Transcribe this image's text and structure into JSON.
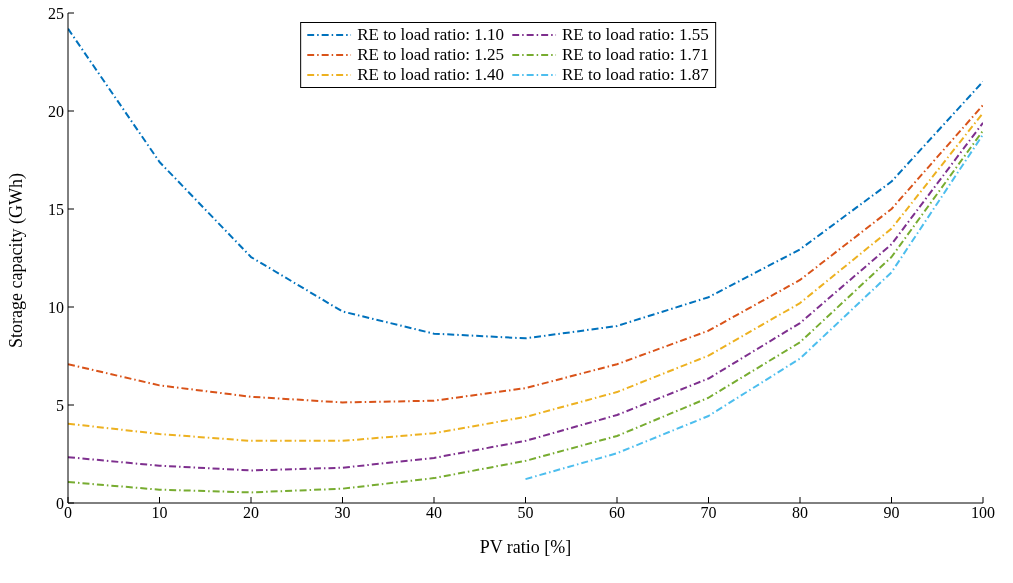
{
  "chart_data": {
    "type": "line",
    "xlabel": "PV ratio [%]",
    "ylabel": "Storage capacity (GWh)",
    "x": [
      0,
      10,
      20,
      30,
      40,
      50,
      60,
      70,
      80,
      90,
      100
    ],
    "series": [
      {
        "name": "RE to load ratio: 1.10",
        "color": "#0072bd",
        "values": [
          24.2,
          17.4,
          12.55,
          9.77,
          8.64,
          8.4,
          9.03,
          10.5,
          12.94,
          16.4,
          21.5
        ]
      },
      {
        "name": "RE to load ratio: 1.25",
        "color": "#d95319",
        "values": [
          7.08,
          6.0,
          5.42,
          5.13,
          5.22,
          5.86,
          7.08,
          8.79,
          11.38,
          15.0,
          20.3
        ]
      },
      {
        "name": "RE to load ratio: 1.40",
        "color": "#edb120",
        "values": [
          4.05,
          3.52,
          3.17,
          3.17,
          3.56,
          4.39,
          5.66,
          7.52,
          10.2,
          14.0,
          19.9
        ]
      },
      {
        "name": "RE to load ratio: 1.55",
        "color": "#7e2f8e",
        "values": [
          2.34,
          1.9,
          1.66,
          1.8,
          2.3,
          3.17,
          4.49,
          6.35,
          9.18,
          13.2,
          19.4
        ]
      },
      {
        "name": "RE to load ratio: 1.71",
        "color": "#77ac30",
        "values": [
          1.07,
          0.68,
          0.54,
          0.73,
          1.27,
          2.15,
          3.42,
          5.37,
          8.2,
          12.55,
          19.0
        ]
      },
      {
        "name": "RE to load ratio: 1.87",
        "color": "#4dbeee",
        "values": [
          null,
          null,
          null,
          null,
          null,
          1.22,
          2.54,
          4.44,
          7.37,
          11.77,
          18.8
        ]
      }
    ],
    "xlim": [
      0,
      100
    ],
    "xticks": [
      0,
      10,
      20,
      30,
      40,
      50,
      60,
      70,
      80,
      90,
      100
    ],
    "ylim": [
      0,
      25
    ],
    "yticks": [
      0,
      5,
      10,
      15,
      20,
      25
    ],
    "grid": false,
    "legend": "top",
    "marker": "none",
    "line_style": "dashed"
  }
}
